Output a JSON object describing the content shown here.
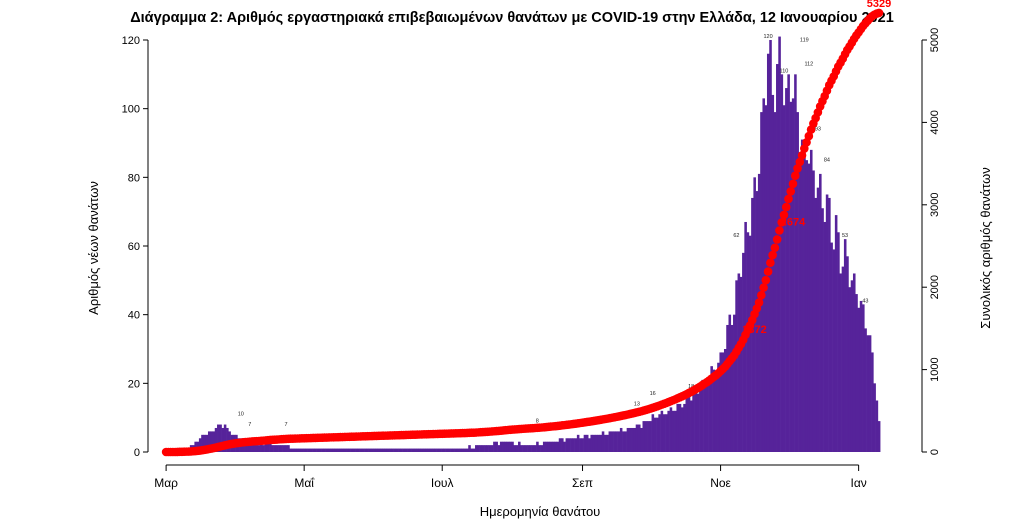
{
  "chart_data": {
    "type": "bar",
    "title": "Διάγραμμα 2: Αριθμός εργαστηριακά επιβεβαιωμένων θανάτων με COVID-19 στην Ελλάδα, 12 Ιανουαρίου 2021",
    "xlabel": "Ημερομηνία θανάτου",
    "ylabel": "Αριθμός νέων θανάτων",
    "y2label": "Συνολικός αριθμός θανάτων",
    "ylim": [
      0,
      120
    ],
    "y_ticks": [
      0,
      20,
      40,
      60,
      80,
      100,
      120
    ],
    "y2lim": [
      0,
      5000
    ],
    "y2_ticks": [
      0,
      1000,
      2000,
      3000,
      4000,
      5000
    ],
    "x_tick_labels": [
      "Μαρ",
      "Μαΐ",
      "Ιουλ",
      "Σεπ",
      "Νοε",
      "Ιαν"
    ],
    "x_tick_days": [
      0,
      61,
      122,
      184,
      245,
      306
    ],
    "x_range_days": [
      -8,
      334
    ],
    "colors": {
      "bars": "#56239A",
      "cumulative": "#FF0000"
    },
    "anchors": [
      [
        0,
        0
      ],
      [
        10,
        1
      ],
      [
        15,
        4
      ],
      [
        20,
        6
      ],
      [
        25,
        8
      ],
      [
        30,
        5
      ],
      [
        35,
        3
      ],
      [
        40,
        2
      ],
      [
        45,
        3
      ],
      [
        50,
        2
      ],
      [
        60,
        1
      ],
      [
        70,
        1
      ],
      [
        80,
        1
      ],
      [
        90,
        1
      ],
      [
        100,
        1
      ],
      [
        110,
        1
      ],
      [
        120,
        1
      ],
      [
        130,
        1
      ],
      [
        140,
        2
      ],
      [
        150,
        3
      ],
      [
        160,
        2
      ],
      [
        170,
        3
      ],
      [
        180,
        4
      ],
      [
        190,
        5
      ],
      [
        200,
        6
      ],
      [
        210,
        8
      ],
      [
        215,
        10
      ],
      [
        220,
        11
      ],
      [
        225,
        13
      ],
      [
        230,
        15
      ],
      [
        235,
        18
      ],
      [
        240,
        22
      ],
      [
        245,
        27
      ],
      [
        248,
        35
      ],
      [
        251,
        42
      ],
      [
        254,
        55
      ],
      [
        257,
        65
      ],
      [
        260,
        75
      ],
      [
        262,
        85
      ],
      [
        264,
        100
      ],
      [
        266,
        118
      ],
      [
        268,
        105
      ],
      [
        270,
        110
      ],
      [
        272,
        115
      ],
      [
        274,
        100
      ],
      [
        276,
        110
      ],
      [
        278,
        102
      ],
      [
        280,
        95
      ],
      [
        282,
        85
      ],
      [
        284,
        90
      ],
      [
        286,
        78
      ],
      [
        288,
        80
      ],
      [
        290,
        70
      ],
      [
        292,
        75
      ],
      [
        294,
        62
      ],
      [
        296,
        66
      ],
      [
        298,
        55
      ],
      [
        300,
        58
      ],
      [
        302,
        52
      ],
      [
        304,
        48
      ],
      [
        306,
        45
      ],
      [
        308,
        40
      ],
      [
        310,
        36
      ],
      [
        312,
        28
      ],
      [
        314,
        15
      ],
      [
        315,
        8
      ]
    ],
    "bar_labels": [
      {
        "day": 33,
        "text": "10"
      },
      {
        "day": 37,
        "text": "7"
      },
      {
        "day": 53,
        "text": "7"
      },
      {
        "day": 164,
        "text": "8"
      },
      {
        "day": 215,
        "text": "16"
      },
      {
        "day": 208,
        "text": "13"
      },
      {
        "day": 232,
        "text": "18"
      },
      {
        "day": 252,
        "text": "62"
      },
      {
        "day": 266,
        "text": "120"
      },
      {
        "day": 273,
        "text": "110"
      },
      {
        "day": 282,
        "text": "119"
      },
      {
        "day": 284,
        "text": "112"
      },
      {
        "day": 288,
        "text": "93"
      },
      {
        "day": 292,
        "text": "84"
      },
      {
        "day": 300,
        "text": "53"
      },
      {
        "day": 309,
        "text": "43"
      }
    ],
    "cumulative_labels": [
      {
        "day": 260,
        "value": 1372,
        "text": "1372"
      },
      {
        "day": 277,
        "value": 2674,
        "text": "2674"
      },
      {
        "day": 315,
        "value": 5329,
        "text": "5329"
      }
    ],
    "total_deaths": 5329
  }
}
